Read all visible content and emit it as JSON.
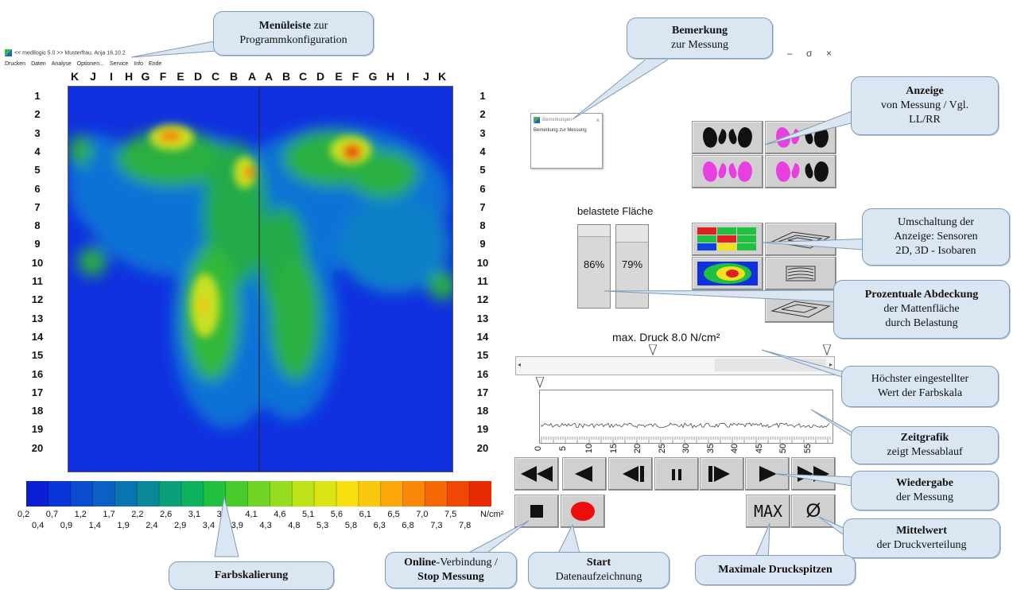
{
  "window": {
    "title": "<< medilogic 5.0 >>   Musterfrau, Anja  16.10.2",
    "minimize": "–",
    "restore": "σ",
    "close": "×"
  },
  "menu": {
    "items": [
      "Drucken",
      "Daten",
      "Analyse",
      "Optionen...",
      "Service",
      "Info",
      "Ende"
    ]
  },
  "grid": {
    "columns": [
      "K",
      "J",
      "I",
      "H",
      "G",
      "F",
      "E",
      "D",
      "C",
      "B",
      "A",
      "A",
      "B",
      "C",
      "D",
      "E",
      "F",
      "G",
      "H",
      "I",
      "J",
      "K"
    ],
    "rows": [
      "1",
      "2",
      "3",
      "4",
      "5",
      "6",
      "7",
      "8",
      "9",
      "10",
      "11",
      "12",
      "13",
      "14",
      "15",
      "16",
      "17",
      "18",
      "19",
      "20"
    ]
  },
  "scale": {
    "top_labels": [
      "0,2",
      "0,7",
      "1,2",
      "1,7",
      "2,2",
      "2,6",
      "3,1",
      "3,6",
      "4,1",
      "4,6",
      "5,1",
      "5,6",
      "6,1",
      "6,5",
      "7,0",
      "7,5"
    ],
    "bottom_labels": [
      "0,4",
      "0,9",
      "1,4",
      "1,9",
      "2,4",
      "2,9",
      "3,4",
      "3,9",
      "4,3",
      "4,8",
      "5,3",
      "5,8",
      "6,3",
      "6,8",
      "7,3",
      "7,8"
    ],
    "unit": "N/cm²",
    "colors": [
      "#0a1fd4",
      "#0a35d8",
      "#0b4bd0",
      "#0b60c4",
      "#0a74b0",
      "#0a8a96",
      "#0aa07a",
      "#0db25c",
      "#22c040",
      "#48cb2c",
      "#70d424",
      "#96dc1e",
      "#bce218",
      "#dde414",
      "#f6e010",
      "#fcc80c",
      "#fca80a",
      "#fa8808",
      "#f66806",
      "#f04804",
      "#e82a02"
    ]
  },
  "remark_dialog": {
    "title": "Bemerkungen",
    "text": "Bemerkung zur Messung",
    "close": "×"
  },
  "area": {
    "label": "belastete Fläche",
    "left_value": "86%",
    "right_value": "79%",
    "left_fraction": 0.86,
    "right_fraction": 0.79
  },
  "pressure": {
    "label": "max. Druck 8.0 N/cm²"
  },
  "timeline": {
    "ticks": [
      "0",
      "5",
      "10",
      "15",
      "20",
      "25",
      "30",
      "35",
      "40",
      "45",
      "50",
      "55"
    ]
  },
  "buttons": {
    "max": "MAX",
    "mean": "Ø"
  },
  "callouts": {
    "menu": {
      "bold": "Menüleiste",
      "rest": " zur",
      "line2": "Programmkonfiguration"
    },
    "remark": {
      "bold": "Bemerkung",
      "line2": "zur Messung"
    },
    "display": {
      "bold": "Anzeige",
      "line2": "von Messung / Vgl.",
      "line3": "LL/RR"
    },
    "switch": {
      "line1": "Umschaltung der",
      "line2": "Anzeige: Sensoren",
      "line3": "2D, 3D - Isobaren"
    },
    "percent": {
      "bold": "Prozentuale Abdeckung",
      "line2": "der Mattenfläche",
      "line3": "durch Belastung"
    },
    "highest": {
      "line1": "Höchster eingestellter",
      "line2": "Wert der  Farbskala"
    },
    "timegraph": {
      "bold": "Zeitgrafik",
      "line2": "zeigt Messablauf"
    },
    "playback": {
      "bold": "Wiedergabe",
      "line2": "der Messung"
    },
    "mean": {
      "bold": "Mittelwert",
      "line2": "der Druckverteilung"
    },
    "maxpeaks": {
      "bold": "Maximale Druckspitzen"
    },
    "start": {
      "bold": "Start",
      "line2": "Datenaufzeichnung"
    },
    "online": {
      "bold": "Online",
      "rest": "-Verbindung /",
      "line2": "Stop Messung"
    },
    "colorscale": {
      "bold": "Farbskalierung"
    }
  }
}
